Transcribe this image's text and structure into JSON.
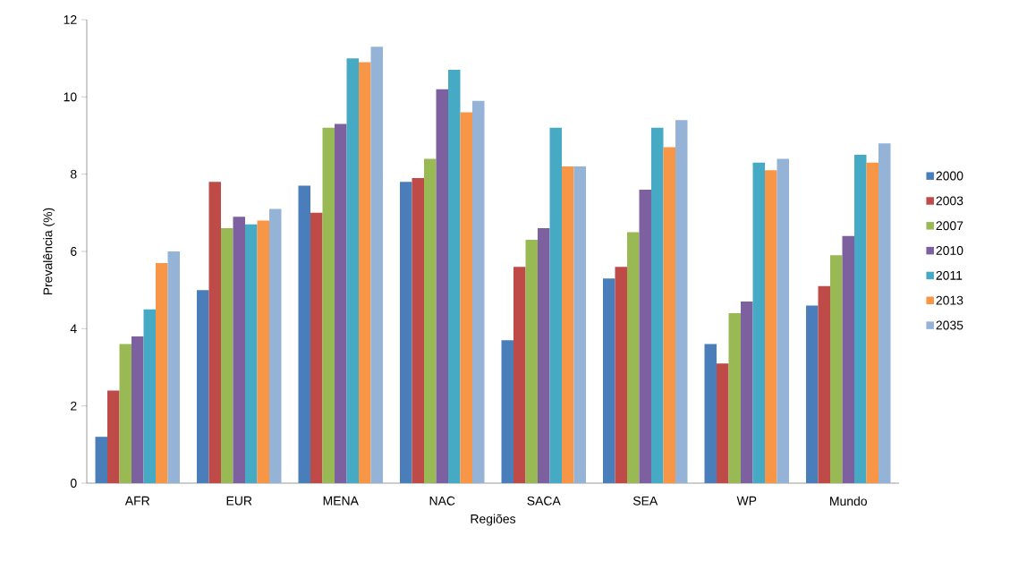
{
  "chart_data": {
    "type": "bar",
    "xlabel": "Regiões",
    "ylabel": "Prevalência (%)",
    "categories": [
      "AFR",
      "EUR",
      "MENA",
      "NAC",
      "SACA",
      "SEA",
      "WP",
      "Mundo"
    ],
    "ylim": [
      0,
      12
    ],
    "yticks": [
      0,
      2,
      4,
      6,
      8,
      10,
      12
    ],
    "legend": "right",
    "series": [
      {
        "name": "2000",
        "color": "#4a7ebb",
        "values": [
          1.2,
          5.0,
          7.7,
          7.8,
          3.7,
          5.3,
          3.6,
          4.6
        ]
      },
      {
        "name": "2003",
        "color": "#be4b48",
        "values": [
          2.4,
          7.8,
          7.0,
          7.9,
          5.6,
          5.6,
          3.1,
          5.1
        ]
      },
      {
        "name": "2007",
        "color": "#98b954",
        "values": [
          3.6,
          6.6,
          9.2,
          8.4,
          6.3,
          6.5,
          4.4,
          5.9
        ]
      },
      {
        "name": "2010",
        "color": "#7d60a0",
        "values": [
          3.8,
          6.9,
          9.3,
          10.2,
          6.6,
          7.6,
          4.7,
          6.4
        ]
      },
      {
        "name": "2011",
        "color": "#46aac5",
        "values": [
          4.5,
          6.7,
          11.0,
          10.7,
          9.2,
          9.2,
          8.3,
          8.5
        ]
      },
      {
        "name": "2013",
        "color": "#f79646",
        "values": [
          5.7,
          6.8,
          10.9,
          9.6,
          8.2,
          8.7,
          8.1,
          8.3
        ]
      },
      {
        "name": "2035",
        "color": "#95b3d7",
        "values": [
          6.0,
          7.1,
          11.3,
          9.9,
          8.2,
          9.4,
          8.4,
          8.8
        ]
      }
    ]
  }
}
